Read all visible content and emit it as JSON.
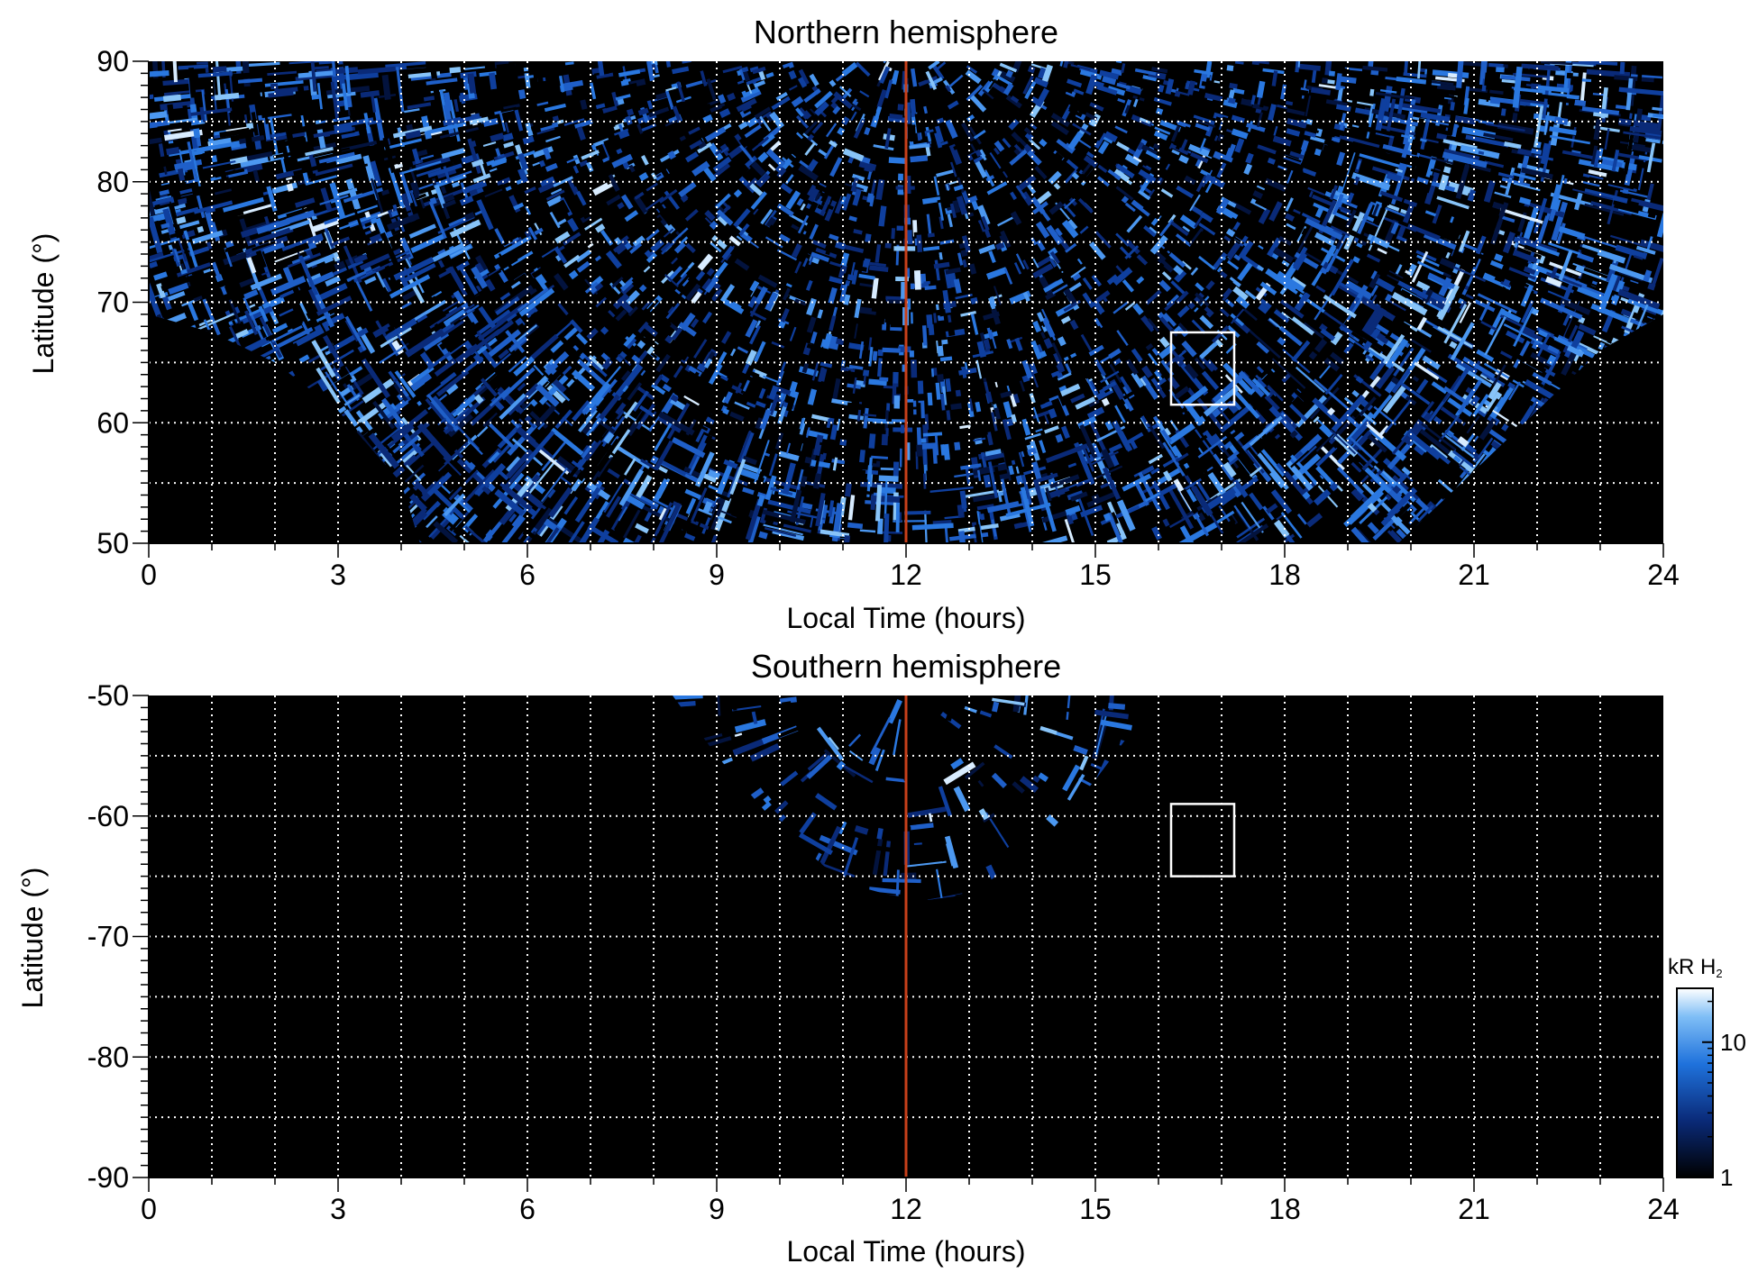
{
  "chart_data": [
    {
      "type": "heatmap",
      "title": "Northern hemisphere",
      "xlabel": "Local Time (hours)",
      "ylabel": "Latitude (°)",
      "xlim": [
        0,
        24
      ],
      "ylim": [
        50,
        90
      ],
      "x_ticks": [
        0,
        3,
        6,
        9,
        12,
        15,
        18,
        21,
        24
      ],
      "x_tick_labels": [
        "0",
        "3",
        "6",
        "9",
        "12",
        "15",
        "18",
        "21",
        "24"
      ],
      "y_ticks": [
        50,
        60,
        70,
        80,
        90
      ],
      "y_tick_labels": [
        "50",
        "60",
        "70",
        "80",
        "90"
      ],
      "grid": true,
      "grid_x_step": 1,
      "grid_y_step": 5,
      "reference_line": {
        "x": 12,
        "color": "#c8401a"
      },
      "box": {
        "x": [
          16.2,
          17.2
        ],
        "y": [
          61.5,
          67.5
        ],
        "color": "#ffffff"
      },
      "coverage": {
        "description_units": "boundary latitude (deg) vs local time (h)",
        "x": [
          0,
          1,
          2,
          3,
          4,
          4.3,
          5,
          6,
          9,
          12,
          15,
          18,
          19,
          19.8,
          20.2,
          21,
          22,
          23,
          24
        ],
        "y": [
          69,
          67.5,
          65,
          61,
          55,
          50,
          50,
          50,
          50,
          50,
          50,
          50,
          50,
          50,
          52,
          56,
          61,
          66,
          69
        ]
      }
    },
    {
      "type": "heatmap",
      "title": "Southern hemisphere",
      "xlabel": "Local Time (hours)",
      "ylabel": "Latitude (°)",
      "xlim": [
        0,
        24
      ],
      "ylim": [
        -90,
        -50
      ],
      "x_ticks": [
        0,
        3,
        6,
        9,
        12,
        15,
        18,
        21,
        24
      ],
      "x_tick_labels": [
        "0",
        "3",
        "6",
        "9",
        "12",
        "15",
        "18",
        "21",
        "24"
      ],
      "y_ticks": [
        -90,
        -80,
        -70,
        -60,
        -50
      ],
      "y_tick_labels": [
        "-90",
        "-80",
        "-70",
        "-60",
        "-50"
      ],
      "grid": true,
      "grid_x_step": 1,
      "grid_y_step": 5,
      "reference_line": {
        "x": 12,
        "color": "#c8401a"
      },
      "box": {
        "x": [
          16.2,
          17.2
        ],
        "y": [
          -65,
          -59
        ],
        "color": "#ffffff"
      },
      "coverage": {
        "description_units": "boundary latitude (deg) vs local time (h)",
        "x": [
          8.3,
          9,
          10,
          11,
          11.7,
          12.3,
          13,
          14,
          15,
          16
        ],
        "y": [
          -50,
          -55,
          -61,
          -65.5,
          -66.5,
          -67,
          -66.5,
          -63,
          -57,
          -50
        ]
      }
    }
  ],
  "colorbar": {
    "unit_text": "kR H",
    "unit_subscript": "2",
    "scale": "log",
    "range": [
      1,
      25
    ],
    "ticks": [
      1,
      10
    ],
    "tick_labels": [
      "1",
      "10"
    ],
    "colors": [
      "#000000",
      "#0a2a78",
      "#1f72dc",
      "#7fbef6",
      "#ffffff"
    ]
  }
}
